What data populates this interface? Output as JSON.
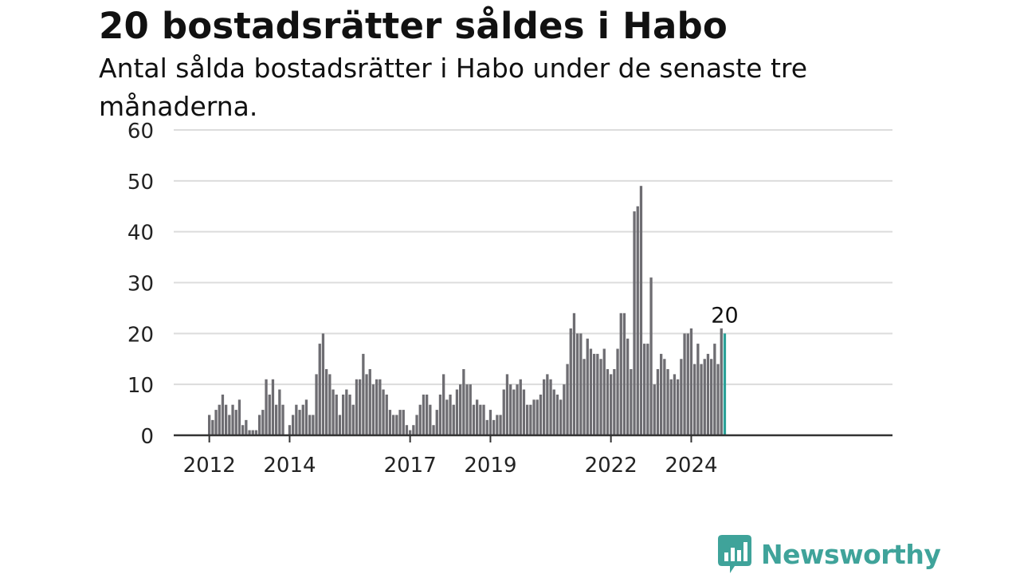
{
  "title": "20 bostadsrätter såldes i Habo",
  "subtitle": "Antal sålda bostadsrätter i Habo under de senaste tre månaderna.",
  "brand": {
    "name": "Newsworthy",
    "color": "#3fa39a",
    "icon": "newsworthy-logo-icon"
  },
  "chart_data": {
    "type": "bar",
    "title": "20 bostadsrätter såldes i Habo",
    "subtitle": "Antal sålda bostadsrätter i Habo under de senaste tre månaderna.",
    "xlabel": "",
    "ylabel": "",
    "ylim": [
      0,
      60
    ],
    "yticks": [
      0,
      10,
      20,
      30,
      40,
      50,
      60
    ],
    "xticks": [
      "2012",
      "2014",
      "2017",
      "2019",
      "2022",
      "2024"
    ],
    "grid": true,
    "bar_color": "#6e6d72",
    "highlight_color": "#2aa198",
    "highlight_label": "20",
    "start": "2012-01",
    "frequency": "monthly",
    "values": [
      4,
      3,
      5,
      6,
      8,
      6,
      4,
      6,
      5,
      7,
      2,
      3,
      1,
      1,
      1,
      4,
      5,
      11,
      8,
      11,
      6,
      9,
      6,
      0,
      2,
      4,
      6,
      5,
      6,
      7,
      4,
      4,
      12,
      18,
      20,
      13,
      12,
      9,
      8,
      4,
      8,
      9,
      8,
      6,
      11,
      11,
      16,
      12,
      13,
      10,
      11,
      11,
      9,
      8,
      5,
      4,
      4,
      5,
      5,
      2,
      1,
      2,
      4,
      6,
      8,
      8,
      6,
      2,
      5,
      8,
      12,
      7,
      8,
      6,
      9,
      10,
      13,
      10,
      10,
      6,
      7,
      6,
      6,
      3,
      5,
      3,
      4,
      4,
      9,
      12,
      10,
      9,
      10,
      11,
      9,
      6,
      6,
      7,
      7,
      8,
      11,
      12,
      11,
      9,
      8,
      7,
      10,
      14,
      21,
      24,
      20,
      20,
      15,
      19,
      17,
      16,
      16,
      15,
      17,
      13,
      12,
      13,
      17,
      24,
      24,
      19,
      13,
      44,
      45,
      49,
      18,
      18,
      31,
      10,
      13,
      16,
      15,
      13,
      11,
      12,
      11,
      15,
      20,
      20,
      21,
      14,
      18,
      14,
      15,
      16,
      15,
      18,
      14,
      21,
      20
    ]
  }
}
